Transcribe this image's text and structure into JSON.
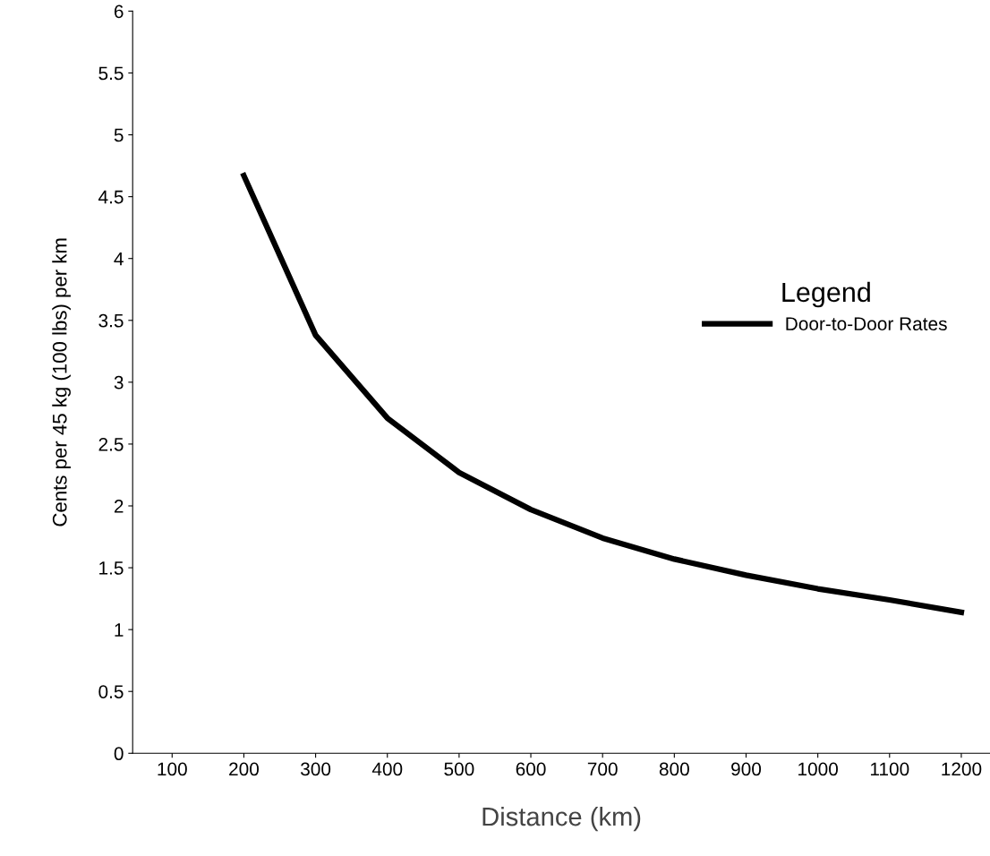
{
  "chart_data": {
    "type": "line",
    "xlabel": "Distance (km)",
    "ylabel": "Cents per 45 kg (100 lbs) per km",
    "legend_title": "Legend",
    "x": [
      200,
      300,
      400,
      500,
      600,
      700,
      800,
      900,
      1000,
      1100,
      1200
    ],
    "series": [
      {
        "name": "Door-to-Door Rates",
        "color": "#000000",
        "values": [
          4.67,
          3.38,
          2.71,
          2.27,
          1.97,
          1.74,
          1.57,
          1.44,
          1.33,
          1.24,
          1.14
        ]
      }
    ],
    "xlim": [
      45,
      1240
    ],
    "xticks": [
      100,
      200,
      300,
      400,
      500,
      600,
      700,
      800,
      900,
      1000,
      1100,
      1200
    ],
    "ylim": [
      0,
      6
    ],
    "yticks": [
      0,
      0.5,
      1,
      1.5,
      2,
      2.5,
      3,
      3.5,
      4,
      4.5,
      5,
      5.5,
      6
    ],
    "grid": false,
    "legend": "right",
    "marker": "none",
    "line_style": "solid"
  }
}
